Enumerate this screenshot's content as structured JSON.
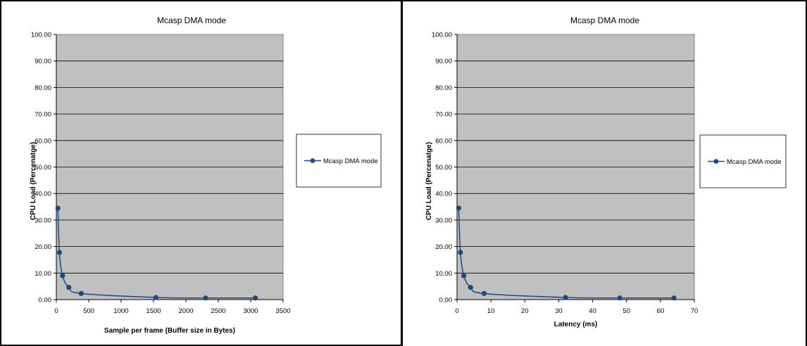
{
  "chart_data": [
    {
      "type": "line",
      "title": "Mcasp DMA mode",
      "xlabel": "Sample per frame (Buffer size in Bytes)",
      "ylabel": "CPU Load (Percenatge)",
      "xlim": [
        0,
        3500
      ],
      "ylim": [
        0,
        100
      ],
      "x_ticks": [
        "0",
        "500",
        "1000",
        "1500",
        "2000",
        "2500",
        "3000",
        "3500"
      ],
      "y_ticks": [
        "0.00",
        "10.00",
        "20.00",
        "30.00",
        "40.00",
        "50.00",
        "60.00",
        "70.00",
        "80.00",
        "90.00",
        "100.00"
      ],
      "grid": true,
      "legend_position": "right",
      "series": [
        {
          "name": "Mcasp DMA mode",
          "color": "#1f497d",
          "x": [
            24,
            48,
            96,
            192,
            384,
            1536,
            2304,
            3072
          ],
          "y": [
            34.5,
            17.8,
            9.0,
            4.6,
            2.3,
            0.8,
            0.6,
            0.6
          ]
        }
      ]
    },
    {
      "type": "line",
      "title": "Mcasp DMA mode",
      "xlabel": "Latency (ms)",
      "ylabel": "CPU Load (Percenatge)",
      "xlim": [
        0,
        70
      ],
      "ylim": [
        0,
        100
      ],
      "x_ticks": [
        "0",
        "10",
        "20",
        "30",
        "40",
        "50",
        "60",
        "70"
      ],
      "y_ticks": [
        "0.00",
        "10.00",
        "20.00",
        "30.00",
        "40.00",
        "50.00",
        "60.00",
        "70.00",
        "80.00",
        "90.00",
        "100.00"
      ],
      "grid": true,
      "legend_position": "right",
      "series": [
        {
          "name": "Mcasp DMA mode",
          "color": "#1f497d",
          "x": [
            0.5,
            1,
            2,
            4,
            8,
            32,
            48,
            64
          ],
          "y": [
            34.5,
            17.8,
            9.0,
            4.6,
            2.3,
            0.8,
            0.6,
            0.6
          ]
        }
      ]
    }
  ]
}
